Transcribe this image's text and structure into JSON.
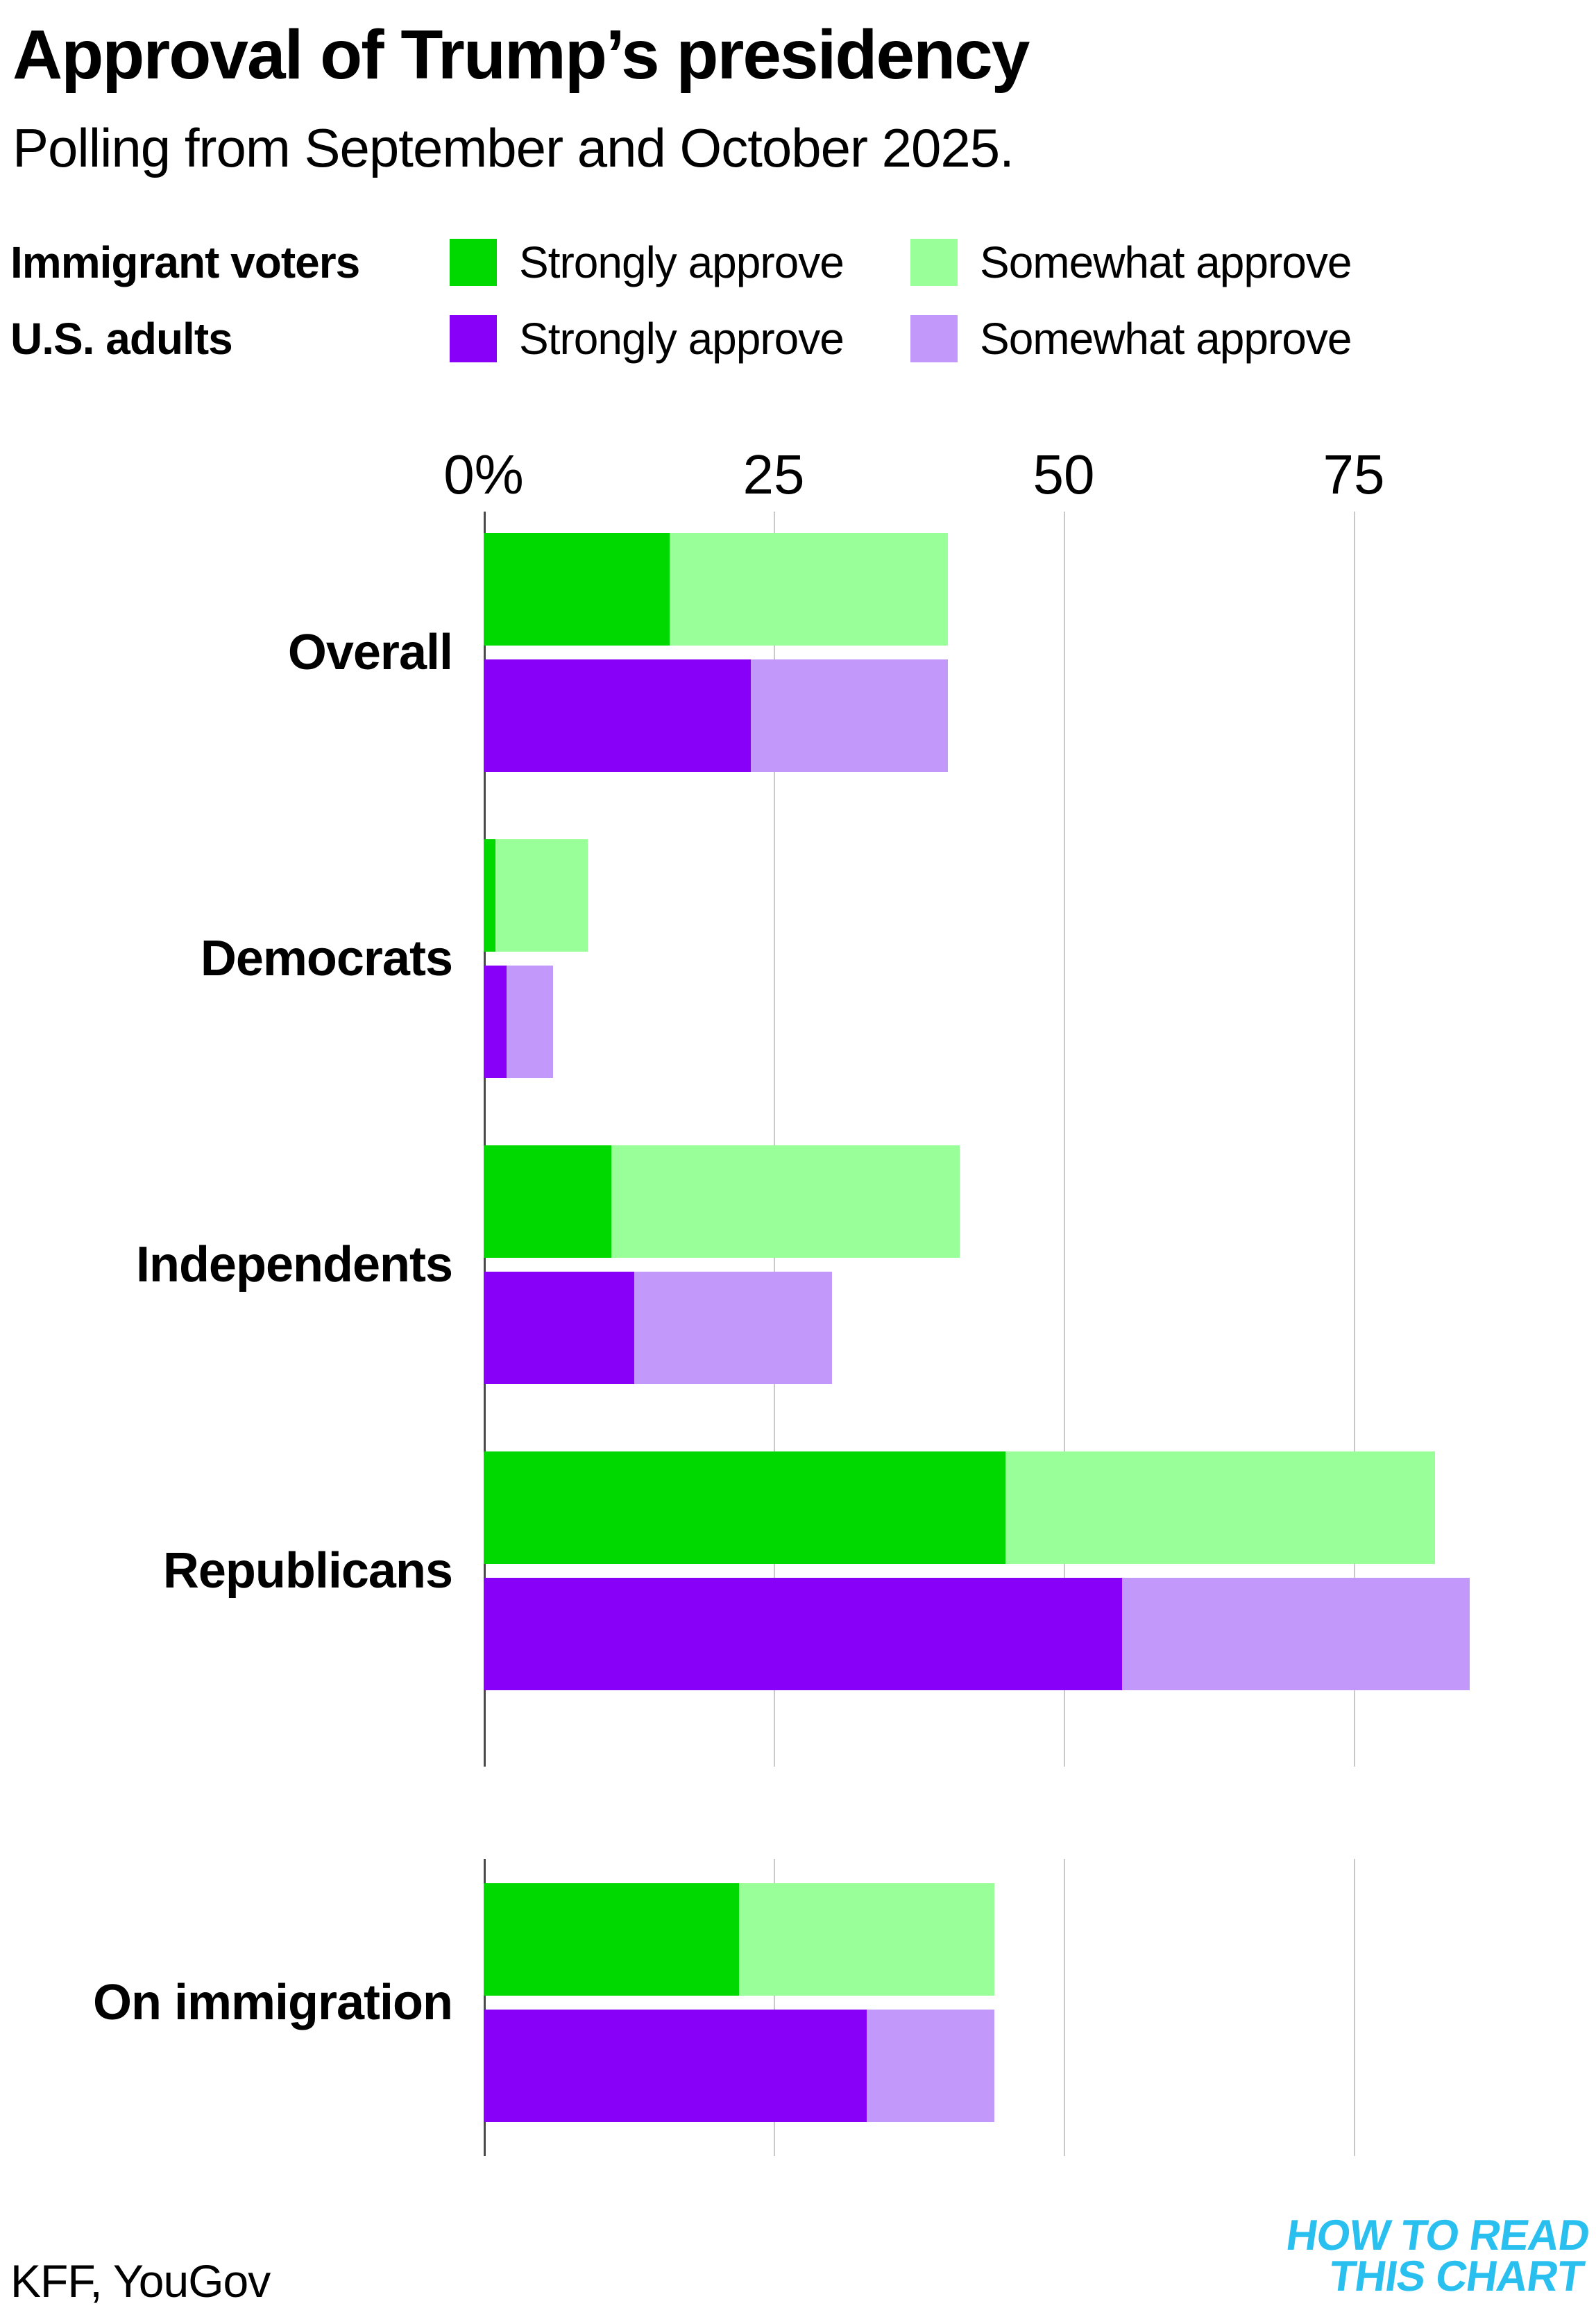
{
  "title": "Approval of Trump’s presidency",
  "subtitle": "Polling from September and October 2025.",
  "legend": {
    "rows": [
      {
        "group": "Immigrant voters",
        "items": [
          {
            "label": "Strongly approve",
            "color": "#00d900"
          },
          {
            "label": "Somewhat approve",
            "color": "#99ff99"
          }
        ]
      },
      {
        "group": "U.S. adults",
        "items": [
          {
            "label": "Strongly approve",
            "color": "#8800f8"
          },
          {
            "label": "Somewhat approve",
            "color": "#c299fa"
          }
        ]
      }
    ]
  },
  "chart_data": {
    "type": "bar",
    "orientation": "horizontal",
    "stacked": true,
    "unit": "percent",
    "title": "Approval of Trump’s presidency",
    "subtitle": "Polling from September and October 2025.",
    "x_ticks": [
      "0%",
      "25",
      "50",
      "75"
    ],
    "x_tick_values": [
      0,
      25,
      50,
      75
    ],
    "xlim": [
      0,
      96
    ],
    "grid": true,
    "categories": [
      "Overall",
      "Democrats",
      "Independents",
      "Republicans",
      "On immigration"
    ],
    "series": [
      {
        "name": "Immigrant voters — Strongly approve",
        "color": "#00d900",
        "values": [
          16,
          1,
          11,
          45,
          22
        ]
      },
      {
        "name": "Immigrant voters — Somewhat approve",
        "color": "#99ff99",
        "values": [
          24,
          8,
          30,
          37,
          22
        ]
      },
      {
        "name": "U.S. adults — Strongly approve",
        "color": "#8800f8",
        "values": [
          23,
          2,
          13,
          55,
          33
        ]
      },
      {
        "name": "U.S. adults — Somewhat approve",
        "color": "#c299fa",
        "values": [
          17,
          4,
          17,
          30,
          11
        ]
      }
    ],
    "totals": {
      "immigrant_voters": [
        40,
        9,
        41,
        82,
        44
      ],
      "us_adults": [
        40,
        6,
        30,
        85,
        44
      ]
    },
    "legend_position": "top"
  },
  "footer": {
    "source": "KFF, YouGov"
  },
  "logo": {
    "line1": "HOW TO READ",
    "line2": "THIS CHART",
    "color": "#29bfef"
  }
}
